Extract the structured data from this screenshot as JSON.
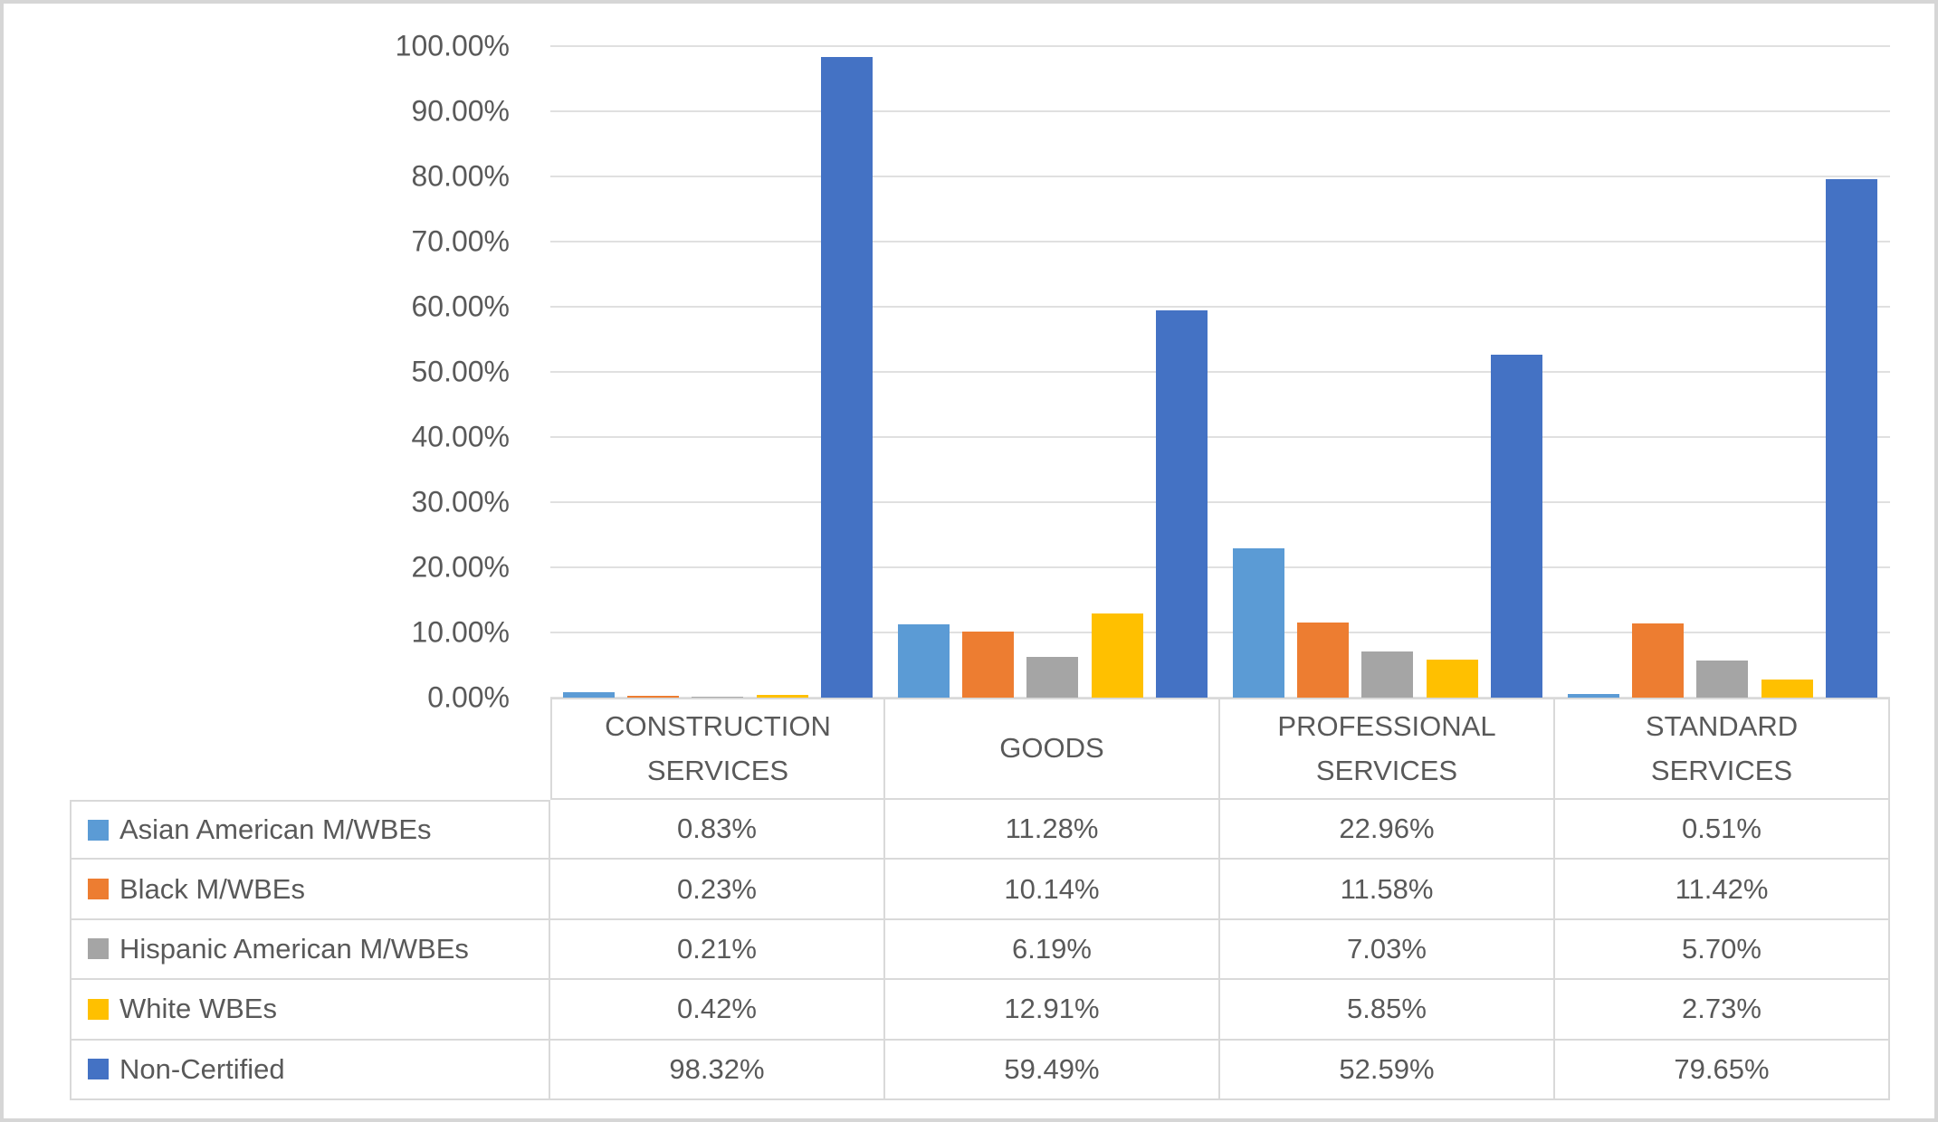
{
  "chart_data": {
    "type": "bar",
    "title": "",
    "xlabel": "",
    "ylabel": "",
    "grid": true,
    "legend_position": "data-table-left-column",
    "categories": [
      "CONSTRUCTION\nSERVICES",
      "GOODS",
      "PROFESSIONAL\nSERVICES",
      "STANDARD\nSERVICES"
    ],
    "y_axis": {
      "min": 0,
      "max": 100,
      "step": 10,
      "ticks": [
        "100.00%",
        "90.00%",
        "80.00%",
        "70.00%",
        "60.00%",
        "50.00%",
        "40.00%",
        "30.00%",
        "20.00%",
        "10.00%",
        "0.00%"
      ]
    },
    "series": [
      {
        "name": "Asian American M/WBEs",
        "color": "#5B9BD5",
        "values": [
          0.83,
          11.28,
          22.96,
          0.51
        ],
        "display": [
          "0.83%",
          "11.28%",
          "22.96%",
          "0.51%"
        ]
      },
      {
        "name": "Black M/WBEs",
        "color": "#ED7D31",
        "values": [
          0.23,
          10.14,
          11.58,
          11.42
        ],
        "display": [
          "0.23%",
          "10.14%",
          "11.58%",
          "11.42%"
        ]
      },
      {
        "name": "Hispanic American M/WBEs",
        "color": "#A5A5A5",
        "values": [
          0.21,
          6.19,
          7.03,
          5.7
        ],
        "display": [
          "0.21%",
          "6.19%",
          "7.03%",
          "5.70%"
        ]
      },
      {
        "name": "White WBEs",
        "color": "#FFC000",
        "values": [
          0.42,
          12.91,
          5.85,
          2.73
        ],
        "display": [
          "0.42%",
          "12.91%",
          "5.85%",
          "2.73%"
        ]
      },
      {
        "name": "Non-Certified",
        "color": "#4472C4",
        "values": [
          98.32,
          59.49,
          52.59,
          79.65
        ],
        "display": [
          "98.32%",
          "59.49%",
          "52.59%",
          "79.65%"
        ]
      }
    ]
  },
  "colors": {
    "text": "#595959",
    "gridline": "#E0E0E0",
    "table_border": "#D9D9D9",
    "frame_border": "#D6D6D6",
    "background": "#FFFFFF"
  }
}
